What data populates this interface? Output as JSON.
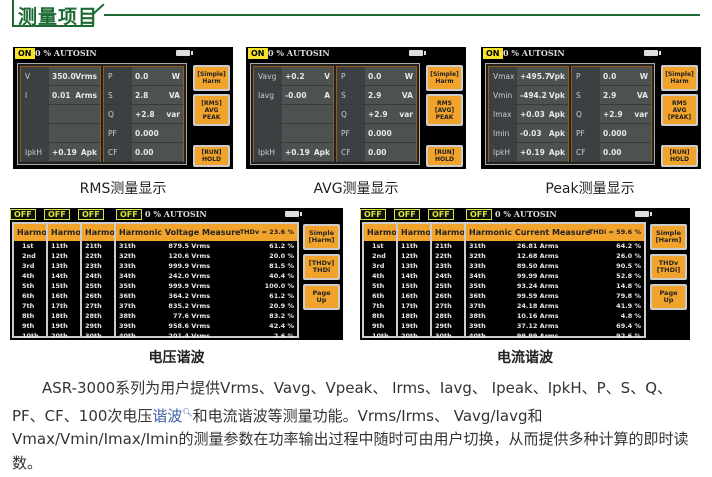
{
  "section_title": "测量项目",
  "colors": {
    "accent_green": "#1d6b33",
    "button_orange": "#f2a32b",
    "on_badge": "#f5e22a"
  },
  "screens": [
    {
      "status": "ON",
      "mode": "0 % AUTOSIN",
      "caption": "RMS测量显示",
      "left": [
        [
          "V",
          "350.0",
          "Vrms"
        ],
        [
          "I",
          "0.01",
          "Arms"
        ],
        [
          "",
          "",
          ""
        ],
        [
          "",
          "",
          ""
        ],
        [
          "IpkH",
          "+0.19",
          "Apk"
        ]
      ],
      "right": [
        [
          "P",
          "0.0",
          "W"
        ],
        [
          "S",
          "2.8",
          "VA"
        ],
        [
          "Q",
          "+2.8",
          "var"
        ],
        [
          "PF",
          "0.000",
          ""
        ],
        [
          "CF",
          "0.00",
          ""
        ]
      ],
      "buttons": [
        "[Simple]\nHarm",
        "[RMS]\nAVG\nPEAK",
        "[RUN]\nHOLD"
      ]
    },
    {
      "status": "ON",
      "mode": "0 % AUTOSIN",
      "caption": "AVG测量显示",
      "left": [
        [
          "Vavg",
          "+0.2",
          "V"
        ],
        [
          "Iavg",
          "-0.00",
          "A"
        ],
        [
          "",
          "",
          ""
        ],
        [
          "",
          "",
          ""
        ],
        [
          "IpkH",
          "+0.19",
          "Apk"
        ]
      ],
      "right": [
        [
          "P",
          "0.0",
          "W"
        ],
        [
          "S",
          "2.9",
          "VA"
        ],
        [
          "Q",
          "+2.9",
          "var"
        ],
        [
          "PF",
          "0.000",
          ""
        ],
        [
          "CF",
          "0.00",
          ""
        ]
      ],
      "buttons": [
        "[Simple]\nHarm",
        "RMS\n[AVG]\nPEAK",
        "[RUN]\nHOLD"
      ]
    },
    {
      "status": "ON",
      "mode": "0 % AUTOSIN",
      "caption": "Peak测量显示",
      "left": [
        [
          "Vmax",
          "+495.7",
          "Vpk"
        ],
        [
          "Vmin",
          "-494.2",
          "Vpk"
        ],
        [
          "Imax",
          "+0.03",
          "Apk"
        ],
        [
          "Imin",
          "-0.03",
          "Apk"
        ],
        [
          "IpkH",
          "+0.19",
          "Apk"
        ]
      ],
      "right": [
        [
          "P",
          "0.0",
          "W"
        ],
        [
          "S",
          "2.9",
          "VA"
        ],
        [
          "Q",
          "+2.9",
          "var"
        ],
        [
          "PF",
          "0.000",
          ""
        ],
        [
          "CF",
          "0.00",
          ""
        ]
      ],
      "buttons": [
        "[Simple]\nHarm",
        "RMS\nAVG\n[PEAK]",
        "[RUN]\nHOLD"
      ]
    }
  ],
  "harmonics": [
    {
      "status": "OFF",
      "mode": "0 % AUTOSIN",
      "caption": "电压谐波",
      "tab_label": "Harmonic",
      "title": "Harmonic Voltage Measure",
      "thd_label": "THDv =",
      "thd_value": "23.6 %",
      "orders_1": [
        "1st",
        "2nd",
        "3rd",
        "4th",
        "5th",
        "6th",
        "7th",
        "8th",
        "9th",
        "10th"
      ],
      "orders_2": [
        "11th",
        "12th",
        "13th",
        "14th",
        "15th",
        "16th",
        "17th",
        "18th",
        "19th",
        "20th"
      ],
      "orders_3": [
        "21th",
        "22th",
        "23th",
        "24th",
        "25th",
        "26th",
        "27th",
        "28th",
        "29th",
        "30th"
      ],
      "rows": [
        [
          "31th",
          "879.5 Vrms",
          "61.2 %"
        ],
        [
          "32th",
          "120.6 Vrms",
          "20.0 %"
        ],
        [
          "33th",
          "999.9 Vrms",
          "81.5 %"
        ],
        [
          "34th",
          "242.0 Vrms",
          "40.4 %"
        ],
        [
          "35th",
          "999.9 Vrms",
          "100.0 %"
        ],
        [
          "36th",
          "364.2 Vrms",
          "61.2 %"
        ],
        [
          "37th",
          "835.2 Vrms",
          "20.9 %"
        ],
        [
          "38th",
          "77.6 Vrms",
          "83.2 %"
        ],
        [
          "39th",
          "958.6 Vrms",
          "42.4 %"
        ],
        [
          "40th",
          "201.4 Vrms",
          "2.6 %"
        ]
      ],
      "buttons": [
        "Simple\n[Harm]",
        "[THDv]\nTHDi",
        "Page\nUp"
      ]
    },
    {
      "status": "OFF",
      "mode": "0 % AUTOSIN",
      "caption": "电流谐波",
      "tab_label": "Harmonic",
      "title": "Harmonic Current Measure",
      "thd_label": "THDi =",
      "thd_value": "59.6 %",
      "orders_1": [
        "1st",
        "2nd",
        "3rd",
        "4th",
        "5th",
        "6th",
        "7th",
        "8th",
        "9th",
        "10th"
      ],
      "orders_2": [
        "11th",
        "12th",
        "13th",
        "14th",
        "15th",
        "16th",
        "17th",
        "18th",
        "19th",
        "20th"
      ],
      "orders_3": [
        "21th",
        "22th",
        "23th",
        "24th",
        "25th",
        "26th",
        "27th",
        "28th",
        "29th",
        "30th"
      ],
      "rows": [
        [
          "31th",
          "26.81 Arms",
          "64.2 %"
        ],
        [
          "32th",
          "12.68 Arms",
          "26.0 %"
        ],
        [
          "33th",
          "89.50 Arms",
          "90.5 %"
        ],
        [
          "34th",
          "99.99 Arms",
          "52.8 %"
        ],
        [
          "35th",
          "93.24 Arms",
          "14.8 %"
        ],
        [
          "36th",
          "99.59 Arms",
          "79.8 %"
        ],
        [
          "37th",
          "24.18 Arms",
          "41.9 %"
        ],
        [
          "38th",
          "10.16 Arms",
          "4.8 %"
        ],
        [
          "39th",
          "37.12 Arms",
          "69.4 %"
        ],
        [
          "40th",
          "99.99 Arms",
          "92.6 %"
        ]
      ],
      "buttons": [
        "Simple\n[Harm]",
        "THDv\n[THDi]",
        "Page\nUp"
      ]
    }
  ],
  "paragraph": {
    "part1": "ASR-3000系列为用户提供Vrms、Vavg、Vpeak、 Irms、Iavg、 Ipeak、IpkH、P、S、Q、PF、CF、100次电压",
    "link": "谐波",
    "part2": "和电流谐波等测量功能。Vrms/Irms、 Vavg/Iavg和Vmax/Vmin/Imax/Imin的测量参数在功率输出过程中随时可由用户切换，从而提供多种计算的即时读数。"
  }
}
